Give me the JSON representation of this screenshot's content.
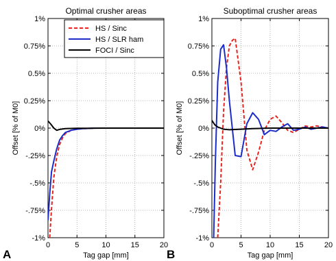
{
  "chart_data": [
    {
      "panel_label": "A",
      "type": "line",
      "title": "Optimal crusher areas",
      "xlabel": "Tag gap [mm]",
      "ylabel": "Offset [% of M0]",
      "xlim": [
        0,
        20
      ],
      "ylim": [
        -1,
        1
      ],
      "x_ticks": [
        "0",
        "5",
        "10",
        "15",
        "20"
      ],
      "y_ticks": [
        "-1%",
        "-.75%",
        "-.5%",
        "-.25%",
        "0%",
        "0.25%",
        "0.5%",
        "0.75%",
        "1%"
      ],
      "grid": "dotted",
      "legend": {
        "position": "top-right",
        "entries": [
          "HS / Sinc",
          "HS / SLR ham",
          "FOCI / Sinc"
        ]
      },
      "series": [
        {
          "name": "HS / Sinc",
          "color": "#e8231f",
          "style": "dashed",
          "x": [
            0.3,
            0.6,
            1,
            1.5,
            2,
            2.5,
            3,
            4,
            5,
            6,
            8,
            10,
            15,
            20
          ],
          "y": [
            -1.0,
            -0.74,
            -0.45,
            -0.26,
            -0.15,
            -0.09,
            -0.05,
            -0.02,
            -0.01,
            -0.005,
            0,
            0,
            0,
            0
          ]
        },
        {
          "name": "HS / SLR ham",
          "color": "#1c2cc9",
          "style": "solid",
          "x": [
            0,
            0.3,
            0.6,
            1,
            1.5,
            2,
            2.5,
            3,
            4,
            5,
            6,
            8,
            10,
            15,
            20
          ],
          "y": [
            -0.84,
            -0.6,
            -0.4,
            -0.3,
            -0.19,
            -0.11,
            -0.07,
            -0.04,
            -0.02,
            -0.01,
            -0.005,
            0,
            0,
            0,
            0
          ]
        },
        {
          "name": "FOCI / Sinc",
          "color": "#000000",
          "style": "solid",
          "x": [
            0,
            0.5,
            1,
            1.5,
            2,
            3,
            5,
            10,
            15,
            20
          ],
          "y": [
            0.065,
            0.035,
            0.0,
            -0.02,
            -0.012,
            -0.005,
            -0.002,
            0,
            0,
            0
          ]
        }
      ]
    },
    {
      "panel_label": "B",
      "type": "line",
      "title": "Suboptimal crusher areas",
      "xlabel": "Tag gap [mm]",
      "ylabel": "Offset [% of M0]",
      "xlim": [
        0,
        20
      ],
      "ylim": [
        -1,
        1
      ],
      "x_ticks": [
        "0",
        "5",
        "10",
        "15",
        "20"
      ],
      "y_ticks": [
        "-1%",
        "-.75%",
        "-.5%",
        "-.25%",
        "0%",
        "0.25%",
        "0.5%",
        "0.75%",
        "1%"
      ],
      "grid": "dotted",
      "series": [
        {
          "name": "HS / Sinc",
          "color": "#e8231f",
          "style": "dashed",
          "x": [
            1.0,
            1.5,
            2,
            2.5,
            3,
            3.5,
            4,
            5,
            6,
            7,
            8,
            9,
            10,
            11,
            12,
            13,
            14,
            15,
            16,
            17,
            18,
            19,
            20
          ],
          "y": [
            -1.0,
            -0.5,
            0.15,
            0.55,
            0.75,
            0.8,
            0.82,
            0.42,
            -0.2,
            -0.38,
            -0.22,
            -0.02,
            0.08,
            0.11,
            0.05,
            -0.02,
            -0.04,
            -0.01,
            0.02,
            0.01,
            0.02,
            0.01,
            0.0
          ]
        },
        {
          "name": "HS / SLR ham",
          "color": "#1c2cc9",
          "style": "solid",
          "x": [
            0.3,
            0.6,
            1,
            1.5,
            2,
            2.5,
            3,
            4,
            5,
            6,
            7,
            8,
            9,
            10,
            11,
            12,
            13,
            14,
            15,
            16,
            17,
            18,
            19,
            20
          ],
          "y": [
            -1.0,
            -0.3,
            0.42,
            0.72,
            0.76,
            0.55,
            0.25,
            -0.25,
            -0.26,
            0.04,
            0.14,
            0.08,
            -0.06,
            -0.02,
            -0.03,
            0.01,
            0.04,
            -0.02,
            -0.01,
            0.01,
            -0.01,
            0.0,
            0.01,
            0.0
          ]
        },
        {
          "name": "FOCI / Sinc",
          "color": "#000000",
          "style": "solid",
          "x": [
            0,
            0.5,
            1,
            1.5,
            2,
            3,
            5,
            7,
            10,
            15,
            20
          ],
          "y": [
            0.07,
            0.03,
            0.01,
            0.0,
            -0.01,
            -0.015,
            -0.01,
            -0.005,
            0.0,
            0.0,
            0.0
          ]
        }
      ]
    }
  ]
}
